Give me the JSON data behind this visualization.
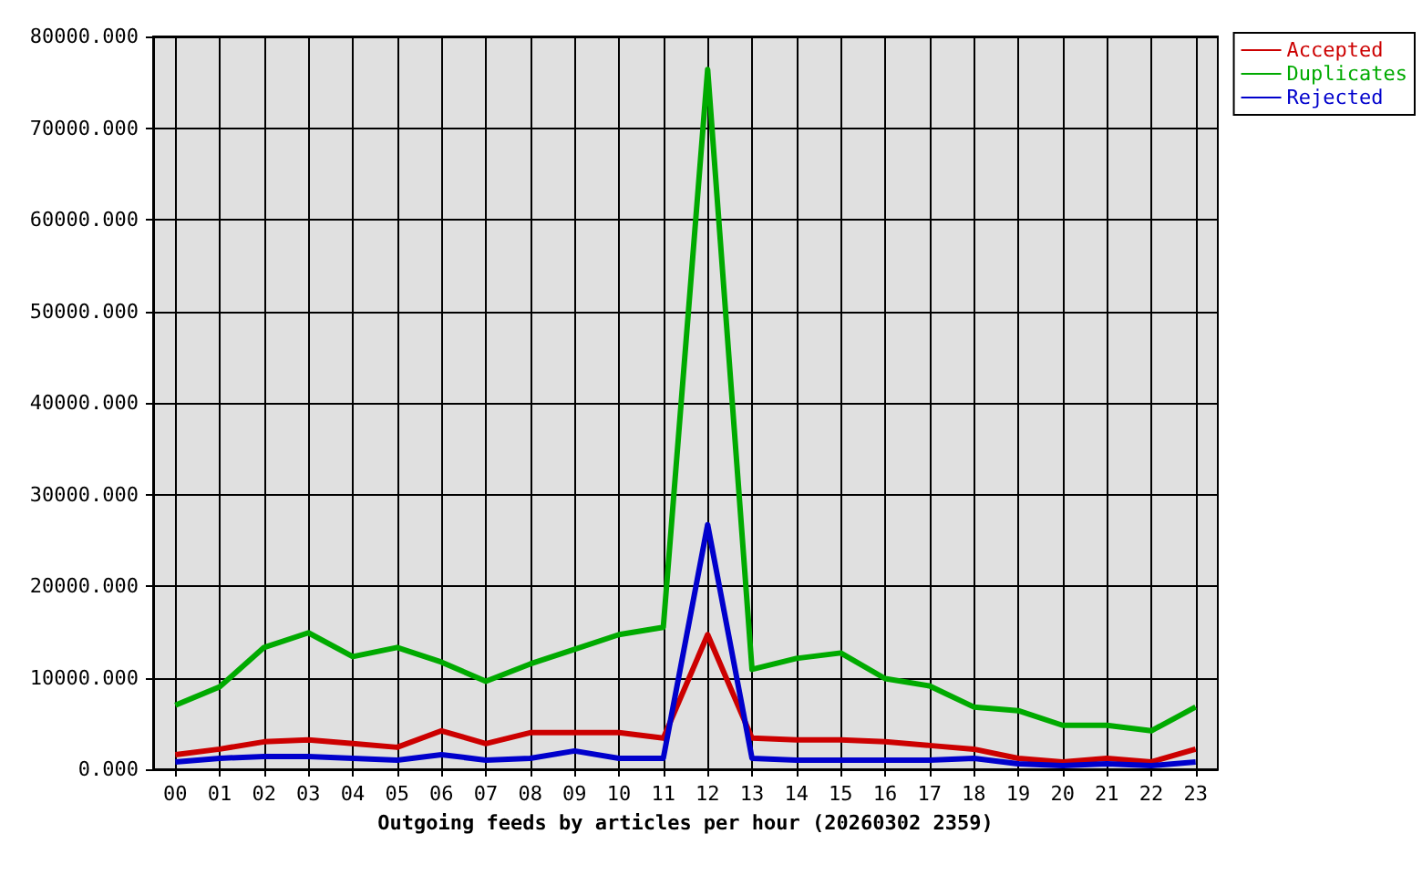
{
  "chart_data": {
    "type": "line",
    "xlabel": "Outgoing feeds by articles per hour (20260302 2359)",
    "categories": [
      "00",
      "01",
      "02",
      "03",
      "04",
      "05",
      "06",
      "07",
      "08",
      "09",
      "10",
      "11",
      "12",
      "13",
      "14",
      "15",
      "16",
      "17",
      "18",
      "19",
      "20",
      "21",
      "22",
      "23"
    ],
    "series": [
      {
        "name": "Accepted",
        "color": "#cc0000",
        "values": [
          1600,
          2200,
          3000,
          3200,
          2800,
          2400,
          4200,
          2800,
          4000,
          4000,
          4000,
          3400,
          14700,
          3400,
          3200,
          3200,
          3000,
          2600,
          2200,
          1200,
          800,
          1200,
          800,
          2200
        ]
      },
      {
        "name": "Duplicates",
        "color": "#00aa00",
        "values": [
          7000,
          9000,
          13300,
          14900,
          12300,
          13300,
          11700,
          9600,
          11500,
          13100,
          14700,
          15500,
          76400,
          10900,
          12100,
          12700,
          9900,
          9100,
          6800,
          6400,
          4800,
          4800,
          4200,
          6800
        ]
      },
      {
        "name": "Rejected",
        "color": "#0000cc",
        "values": [
          800,
          1200,
          1400,
          1400,
          1200,
          1000,
          1600,
          1000,
          1200,
          2000,
          1200,
          1200,
          26700,
          1200,
          1000,
          1000,
          1000,
          1000,
          1200,
          600,
          400,
          600,
          400,
          800
        ]
      }
    ],
    "ylim": [
      0,
      80000
    ],
    "yticks": [
      {
        "value": 0,
        "label": "0.000"
      },
      {
        "value": 10000,
        "label": "10000.000"
      },
      {
        "value": 20000,
        "label": "20000.000"
      },
      {
        "value": 30000,
        "label": "30000.000"
      },
      {
        "value": 40000,
        "label": "40000.000"
      },
      {
        "value": 50000,
        "label": "50000.000"
      },
      {
        "value": 60000,
        "label": "60000.000"
      },
      {
        "value": 70000,
        "label": "70000.000"
      },
      {
        "value": 80000,
        "label": "80000.000"
      }
    ],
    "grid": true,
    "legend": "top right",
    "marker": "none",
    "line_style": "solid"
  }
}
